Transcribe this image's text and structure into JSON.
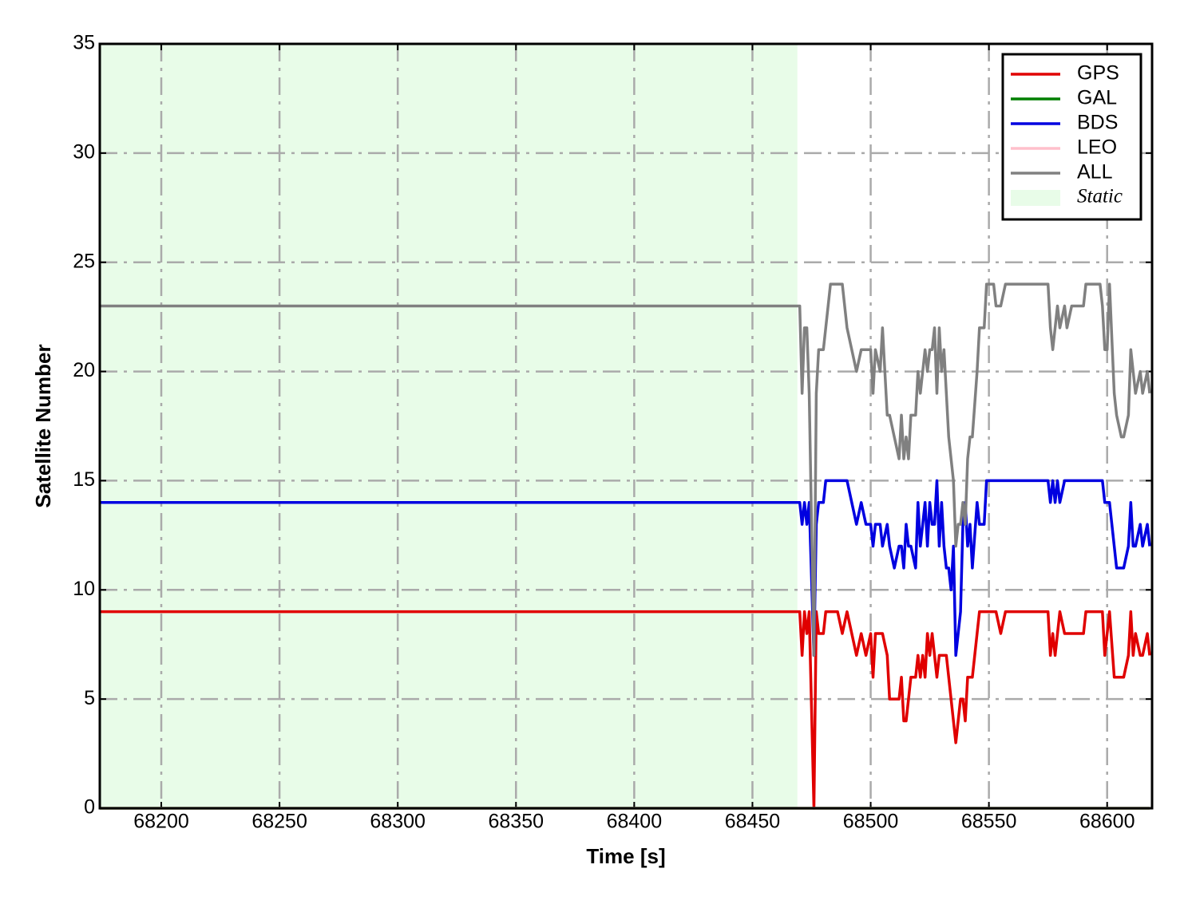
{
  "chart_data": {
    "type": "line",
    "xlabel": "Time [s]",
    "ylabel": "Satellite Number",
    "xlim": [
      68174,
      68619
    ],
    "ylim": [
      0,
      35
    ],
    "xticks": [
      68200,
      68250,
      68300,
      68350,
      68400,
      68450,
      68500,
      68550,
      68600
    ],
    "yticks": [
      0,
      5,
      10,
      15,
      20,
      25,
      30,
      35
    ],
    "grid": true,
    "legend": "upper right",
    "span": {
      "label": "Static",
      "x": [
        68174,
        68469
      ],
      "color": "#e8fce8"
    },
    "x": [
      68174,
      68470,
      68471,
      68472,
      68473,
      68474,
      68476,
      68477,
      68478,
      68480,
      68481,
      68483,
      68486,
      68488,
      68490,
      68492,
      68494,
      68496,
      68498,
      68500,
      68501,
      68502,
      68504,
      68505,
      68507,
      68508,
      68510,
      68512,
      68513,
      68514,
      68515,
      68516,
      68517,
      68519,
      68520,
      68521,
      68522,
      68523,
      68524,
      68525,
      68526,
      68527,
      68528,
      68529,
      68530,
      68531,
      68532,
      68533,
      68534,
      68535,
      68536,
      68537,
      68538,
      68539,
      68540,
      68541,
      68542,
      68543,
      68545,
      68546,
      68548,
      68549,
      68552,
      68553,
      68555,
      68557,
      68575,
      68576,
      68577,
      68578,
      68579,
      68580,
      68582,
      68583,
      68585,
      68590,
      68591,
      68597,
      68598,
      68599,
      68600,
      68601,
      68603,
      68604,
      68606,
      68607,
      68609,
      68610,
      68611,
      68612,
      68614,
      68615,
      68617,
      68618
    ],
    "series": [
      {
        "name": "GPS",
        "color": "#e00000",
        "values": [
          9,
          9,
          7,
          9,
          8,
          9,
          0,
          9,
          8,
          8,
          9,
          9,
          9,
          8,
          9,
          8,
          7,
          8,
          7,
          8,
          6,
          8,
          8,
          8,
          7,
          5,
          5,
          5,
          6,
          4,
          4,
          5,
          6,
          6,
          7,
          6,
          7,
          6,
          8,
          7,
          8,
          7,
          6,
          7,
          7,
          7,
          7,
          6,
          5,
          4,
          3,
          4,
          5,
          5,
          4,
          6,
          6,
          6,
          8,
          9,
          9,
          9,
          9,
          9,
          8,
          9,
          9,
          7,
          8,
          7,
          8,
          9,
          8,
          8,
          8,
          8,
          9,
          9,
          9,
          7,
          8,
          9,
          6,
          6,
          6,
          6,
          7,
          9,
          7,
          8,
          7,
          7,
          8,
          7
        ]
      },
      {
        "name": "GAL",
        "color": "#007f00",
        "values": [
          0,
          0,
          0,
          0,
          0,
          0,
          0,
          0,
          0,
          0,
          0,
          0,
          0,
          0,
          0,
          0,
          0,
          0,
          0,
          0,
          0,
          0,
          0,
          0,
          0,
          0,
          0,
          0,
          0,
          0,
          0,
          0,
          0,
          0,
          0,
          0,
          0,
          0,
          0,
          0,
          0,
          0,
          0,
          0,
          0,
          0,
          0,
          0,
          0,
          0,
          0,
          0,
          0,
          0,
          0,
          0,
          0,
          0,
          0,
          0,
          0,
          0,
          0,
          0,
          0,
          0,
          0,
          0,
          0,
          0,
          0,
          0,
          0,
          0,
          0,
          0,
          0,
          0,
          0,
          0,
          0,
          0,
          0,
          0,
          0,
          0,
          0,
          0,
          0,
          0,
          0,
          0,
          0,
          0
        ]
      },
      {
        "name": "BDS",
        "color": "#0000e0",
        "values": [
          14,
          14,
          13,
          14,
          13,
          14,
          7,
          13,
          14,
          14,
          15,
          15,
          15,
          15,
          15,
          14,
          13,
          14,
          13,
          13,
          12,
          13,
          13,
          12,
          13,
          12,
          11,
          12,
          12,
          11,
          13,
          12,
          12,
          11,
          14,
          12,
          13,
          14,
          12,
          14,
          13,
          13,
          15,
          12,
          14,
          12,
          11,
          11,
          10,
          12,
          7,
          8,
          9,
          13,
          14,
          12,
          13,
          11,
          14,
          13,
          13,
          15,
          15,
          15,
          15,
          15,
          15,
          14,
          15,
          14,
          15,
          14,
          15,
          15,
          15,
          15,
          15,
          15,
          15,
          14,
          14,
          14,
          12,
          11,
          11,
          11,
          12,
          14,
          12,
          12,
          13,
          12,
          13,
          12
        ]
      },
      {
        "name": "LEO",
        "color": "#ffc0cb",
        "values": [
          0,
          0,
          0,
          0,
          0,
          0,
          0,
          0,
          0,
          0,
          0,
          0,
          0,
          0,
          0,
          0,
          0,
          0,
          0,
          0,
          0,
          0,
          0,
          0,
          0,
          0,
          0,
          0,
          0,
          0,
          0,
          0,
          0,
          0,
          0,
          0,
          0,
          0,
          0,
          0,
          0,
          0,
          0,
          0,
          0,
          0,
          0,
          0,
          0,
          0,
          0,
          0,
          0,
          0,
          0,
          0,
          0,
          0,
          0,
          0,
          0,
          0,
          0,
          0,
          0,
          0,
          0,
          0,
          0,
          0,
          0,
          0,
          0,
          0,
          0,
          0,
          0,
          0,
          0,
          0,
          0,
          0,
          0,
          0,
          0,
          0,
          0,
          0,
          0,
          0,
          0,
          0,
          0,
          0
        ]
      },
      {
        "name": "ALL",
        "color": "#808080",
        "values": [
          23,
          23,
          19,
          22,
          22,
          19,
          7,
          19,
          21,
          21,
          22,
          24,
          24,
          24,
          22,
          21,
          20,
          21,
          21,
          21,
          19,
          21,
          20,
          22,
          18,
          18,
          17,
          16,
          18,
          16,
          17,
          16,
          18,
          18,
          20,
          19,
          20,
          21,
          20,
          21,
          21,
          22,
          19,
          22,
          20,
          21,
          19,
          17,
          16,
          15,
          12,
          13,
          13,
          14,
          13,
          16,
          17,
          17,
          20,
          22,
          22,
          24,
          24,
          23,
          23,
          24,
          24,
          22,
          21,
          22,
          23,
          22,
          23,
          22,
          23,
          23,
          24,
          24,
          23,
          21,
          21,
          24,
          19,
          18,
          17,
          17,
          18,
          21,
          20,
          19,
          20,
          19,
          20,
          19
        ]
      }
    ]
  }
}
